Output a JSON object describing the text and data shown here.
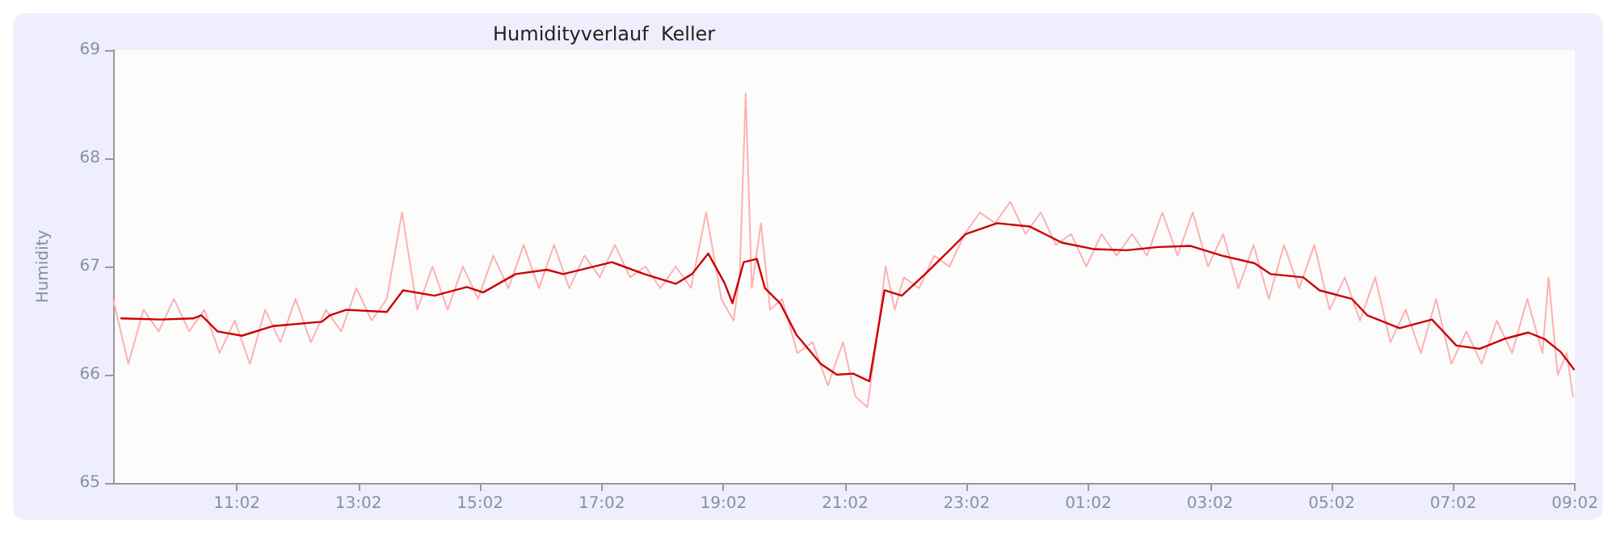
{
  "chart_data": {
    "type": "line",
    "title": "Humidityverlauf  Keller",
    "ylabel": "Humidity",
    "grid": false,
    "marker": "none",
    "line_style": "solid",
    "xlim": [
      "--01-01T09:00",
      "--01-02T09:02"
    ],
    "ylim": [
      65,
      69
    ],
    "yticks": [
      65,
      66,
      67,
      68,
      69
    ],
    "xticks": [
      {
        "value": "--01-01T11:02",
        "label": "11:02"
      },
      {
        "value": "--01-01T13:02",
        "label": "13:02"
      },
      {
        "value": "--01-01T15:02",
        "label": "15:02"
      },
      {
        "value": "--01-01T17:02",
        "label": "17:02"
      },
      {
        "value": "--01-01T19:02",
        "label": "19:02"
      },
      {
        "value": "--01-01T21:02",
        "label": "21:02"
      },
      {
        "value": "--01-01T23:02",
        "label": "23:02"
      },
      {
        "value": "--01-02T01:02",
        "label": "01:02"
      },
      {
        "value": "--01-02T03:02",
        "label": "03:02"
      },
      {
        "value": "--01-02T05:02",
        "label": "05:02"
      },
      {
        "value": "--01-02T07:02",
        "label": "07:02"
      },
      {
        "value": "--01-02T09:02",
        "label": "09:02"
      }
    ],
    "series": [
      {
        "color": "#ffb0b0",
        "x": [
          "--01-01T09:00",
          "--01-01T09:15",
          "--01-01T09:30",
          "--01-01T09:45",
          "--01-01T10:00",
          "--01-01T10:15",
          "--01-01T10:30",
          "--01-01T10:45",
          "--01-01T11:00",
          "--01-01T11:15",
          "--01-01T11:30",
          "--01-01T11:45",
          "--01-01T12:00",
          "--01-01T12:15",
          "--01-01T12:30",
          "--01-01T12:45",
          "--01-01T13:00",
          "--01-01T13:15",
          "--01-01T13:30",
          "--01-01T13:45",
          "--01-01T14:00",
          "--01-01T14:15",
          "--01-01T14:30",
          "--01-01T14:45",
          "--01-01T15:00",
          "--01-01T15:15",
          "--01-01T15:30",
          "--01-01T15:45",
          "--01-01T16:00",
          "--01-01T16:15",
          "--01-01T16:30",
          "--01-01T16:45",
          "--01-01T17:00",
          "--01-01T17:15",
          "--01-01T17:30",
          "--01-01T17:45",
          "--01-01T18:00",
          "--01-01T18:15",
          "--01-01T18:30",
          "--01-01T18:45",
          "--01-01T19:00",
          "--01-01T19:12",
          "--01-01T19:18",
          "--01-01T19:24",
          "--01-01T19:30",
          "--01-01T19:39",
          "--01-01T19:48",
          "--01-01T20:00",
          "--01-01T20:15",
          "--01-01T20:30",
          "--01-01T20:45",
          "--01-01T21:00",
          "--01-01T21:12",
          "--01-01T21:24",
          "--01-01T21:33",
          "--01-01T21:42",
          "--01-01T21:51",
          "--01-01T22:00",
          "--01-01T22:15",
          "--01-01T22:30",
          "--01-01T22:45",
          "--01-01T23:00",
          "--01-01T23:15",
          "--01-01T23:30",
          "--01-01T23:45",
          "--01-02T00:00",
          "--01-02T00:15",
          "--01-02T00:30",
          "--01-02T00:45",
          "--01-02T01:00",
          "--01-02T01:15",
          "--01-02T01:30",
          "--01-02T01:45",
          "--01-02T02:00",
          "--01-02T02:15",
          "--01-02T02:30",
          "--01-02T02:45",
          "--01-02T03:00",
          "--01-02T03:15",
          "--01-02T03:30",
          "--01-02T03:45",
          "--01-02T04:00",
          "--01-02T04:15",
          "--01-02T04:30",
          "--01-02T04:45",
          "--01-02T05:00",
          "--01-02T05:15",
          "--01-02T05:30",
          "--01-02T05:45",
          "--01-02T06:00",
          "--01-02T06:15",
          "--01-02T06:30",
          "--01-02T06:45",
          "--01-02T07:00",
          "--01-02T07:15",
          "--01-02T07:30",
          "--01-02T07:45",
          "--01-02T08:00",
          "--01-02T08:15",
          "--01-02T08:30",
          "--01-02T08:36",
          "--01-02T08:45",
          "--01-02T08:54",
          "--01-02T09:00"
        ],
        "values": [
          66.7,
          66.1,
          66.6,
          66.4,
          66.7,
          66.4,
          66.6,
          66.2,
          66.5,
          66.1,
          66.6,
          66.3,
          66.7,
          66.3,
          66.6,
          66.4,
          66.8,
          66.5,
          66.7,
          67.5,
          66.6,
          67.0,
          66.6,
          67.0,
          66.7,
          67.1,
          66.8,
          67.2,
          66.8,
          67.2,
          66.8,
          67.1,
          66.9,
          67.2,
          66.9,
          67.0,
          66.8,
          67.0,
          66.8,
          67.5,
          66.7,
          66.5,
          66.9,
          68.6,
          66.8,
          67.4,
          66.6,
          66.7,
          66.2,
          66.3,
          65.9,
          66.3,
          65.8,
          65.7,
          66.3,
          67.0,
          66.6,
          66.9,
          66.8,
          67.1,
          67.0,
          67.3,
          67.5,
          67.4,
          67.6,
          67.3,
          67.5,
          67.2,
          67.3,
          67.0,
          67.3,
          67.1,
          67.3,
          67.1,
          67.5,
          67.1,
          67.5,
          67.0,
          67.3,
          66.8,
          67.2,
          66.7,
          67.2,
          66.8,
          67.2,
          66.6,
          66.9,
          66.5,
          66.9,
          66.3,
          66.6,
          66.2,
          66.7,
          66.1,
          66.4,
          66.1,
          66.5,
          66.2,
          66.7,
          66.2,
          66.9,
          66.0,
          66.2,
          65.8
        ]
      },
      {
        "color": "#cc0000",
        "x": [
          "--01-01T09:08",
          "--01-01T09:47",
          "--01-01T10:19",
          "--01-01T10:27",
          "--01-01T10:43",
          "--01-01T11:07",
          "--01-01T11:38",
          "--01-01T12:26",
          "--01-01T12:34",
          "--01-01T12:50",
          "--01-01T13:30",
          "--01-01T13:46",
          "--01-01T14:17",
          "--01-01T14:49",
          "--01-01T15:05",
          "--01-01T15:37",
          "--01-01T16:08",
          "--01-01T16:24",
          "--01-01T17:12",
          "--01-01T17:44",
          "--01-01T18:15",
          "--01-01T18:31",
          "--01-01T18:47",
          "--01-01T19:03",
          "--01-01T19:11",
          "--01-01T19:22",
          "--01-01T19:35",
          "--01-01T19:43",
          "--01-01T19:58",
          "--01-01T20:14",
          "--01-01T20:38",
          "--01-01T20:54",
          "--01-01T21:10",
          "--01-01T21:26",
          "--01-01T21:41",
          "--01-01T21:58",
          "--01-01T22:21",
          "--01-01T22:45",
          "--01-01T23:01",
          "--01-01T23:32",
          "--01-02T00:04",
          "--01-02T00:36",
          "--01-02T01:08",
          "--01-02T01:40",
          "--01-02T02:11",
          "--01-02T02:43",
          "--01-02T03:14",
          "--01-02T03:46",
          "--01-02T04:02",
          "--01-02T04:34",
          "--01-02T04:50",
          "--01-02T05:22",
          "--01-02T05:37",
          "--01-02T06:09",
          "--01-02T06:41",
          "--01-02T07:05",
          "--01-02T07:28",
          "--01-02T07:52",
          "--01-02T08:16",
          "--01-02T08:32",
          "--01-02T08:48",
          "--01-02T09:01"
        ],
        "values": [
          66.52,
          66.51,
          66.52,
          66.55,
          66.4,
          66.36,
          66.45,
          66.49,
          66.55,
          66.6,
          66.58,
          66.78,
          66.73,
          66.81,
          66.76,
          66.93,
          66.97,
          66.93,
          67.04,
          66.93,
          66.84,
          66.93,
          67.12,
          66.85,
          66.66,
          67.04,
          67.07,
          66.8,
          66.66,
          66.37,
          66.1,
          66.0,
          66.01,
          65.94,
          66.78,
          66.73,
          66.93,
          67.15,
          67.3,
          67.4,
          67.37,
          67.22,
          67.16,
          67.15,
          67.18,
          67.19,
          67.1,
          67.03,
          66.93,
          66.9,
          66.78,
          66.7,
          66.55,
          66.43,
          66.51,
          66.27,
          66.24,
          66.33,
          66.39,
          66.33,
          66.21,
          66.05
        ]
      }
    ]
  }
}
